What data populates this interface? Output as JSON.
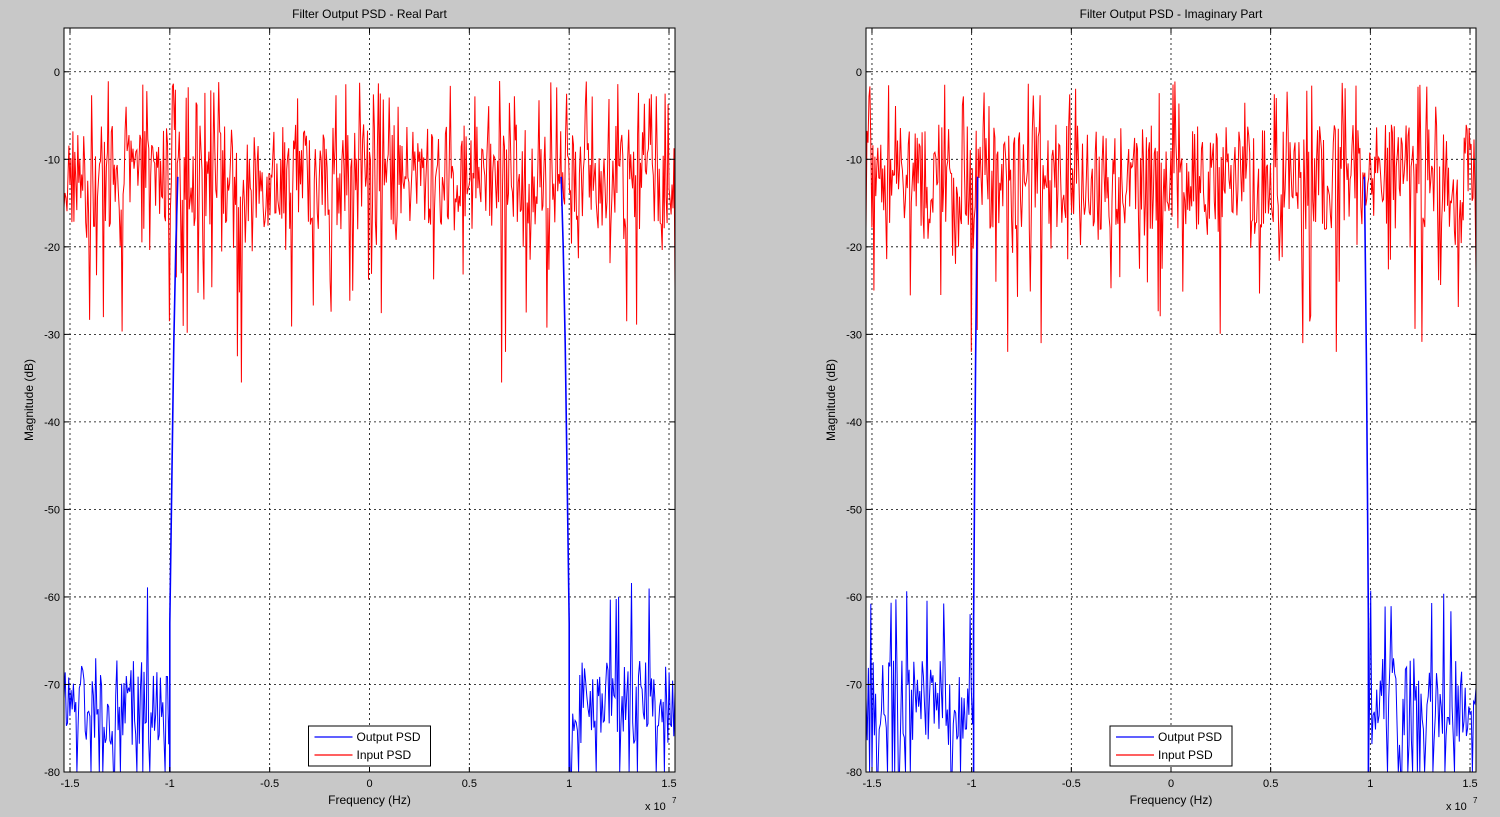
{
  "figure": {
    "background": "#c8c8c8"
  },
  "chart_data": [
    {
      "type": "line",
      "title": "Filter Output PSD - Real Part",
      "xlabel": "Frequency (Hz)",
      "ylabel": "Magnitude (dB)",
      "x_multiplier_label": "x 10",
      "x_multiplier_exponent": "7",
      "xlim": [
        -1.53,
        1.53
      ],
      "ylim": [
        -80,
        5
      ],
      "xticks": [
        -1.5,
        -1,
        -0.5,
        0,
        0.5,
        1,
        1.5
      ],
      "xtick_labels": [
        "-1.5",
        "-1",
        "-0.5",
        "0",
        "0.5",
        "1",
        "1.5"
      ],
      "yticks": [
        0,
        -10,
        -20,
        -30,
        -40,
        -50,
        -60,
        -70,
        -80
      ],
      "ytick_labels": [
        "0",
        "-10",
        "-20",
        "-30",
        "-40",
        "-50",
        "-60",
        "-70",
        "-80"
      ],
      "grid": true,
      "legend_position": "bottom-center",
      "series": [
        {
          "name": "Output PSD",
          "color": "#0000ff",
          "passband": [
            -1.0,
            1.0
          ],
          "passband_level_db": 0,
          "stopband_level_db": -72,
          "stopband_noise_range_db": [
            -80,
            -61
          ],
          "transition_points": [
            [
              -1.0,
              -80
            ],
            [
              -1.0,
              -63
            ],
            [
              -0.99,
              -47
            ],
            [
              -0.98,
              -31
            ],
            [
              -0.97,
              -20
            ],
            [
              -0.96,
              -12
            ],
            [
              0.96,
              -12
            ],
            [
              0.97,
              -20
            ],
            [
              0.98,
              -31
            ],
            [
              0.99,
              -47
            ],
            [
              1.0,
              -63
            ],
            [
              1.0,
              -80
            ]
          ]
        },
        {
          "name": "Input PSD",
          "color": "#ff0000",
          "mean_db": -12,
          "range_db": [
            -36,
            0
          ],
          "min_points": [
            [
              -1.0,
              -28.5
            ],
            [
              -0.66,
              -32.5
            ],
            [
              -0.64,
              -35.5
            ],
            [
              0.66,
              -35.5
            ],
            [
              0.68,
              -32
            ]
          ]
        }
      ]
    },
    {
      "type": "line",
      "title": "Filter Output PSD - Imaginary Part",
      "xlabel": "Frequency (Hz)",
      "ylabel": "Magnitude (dB)",
      "x_multiplier_label": "x 10",
      "x_multiplier_exponent": "7",
      "xlim": [
        -1.53,
        1.53
      ],
      "ylim": [
        -80,
        5
      ],
      "xticks": [
        -1.5,
        -1,
        -0.5,
        0,
        0.5,
        1,
        1.5
      ],
      "xtick_labels": [
        "-1.5",
        "-1",
        "-0.5",
        "0",
        "0.5",
        "1",
        "1.5"
      ],
      "yticks": [
        0,
        -10,
        -20,
        -30,
        -40,
        -50,
        -60,
        -70,
        -80
      ],
      "ytick_labels": [
        "0",
        "-10",
        "-20",
        "-30",
        "-40",
        "-50",
        "-60",
        "-70",
        "-80"
      ],
      "grid": true,
      "legend_position": "bottom-center",
      "series": [
        {
          "name": "Output PSD",
          "color": "#0000ff",
          "passband": [
            -0.99,
            0.99
          ],
          "passband_level_db": 0,
          "stopband_level_db": -72,
          "stopband_noise_range_db": [
            -80,
            -62
          ],
          "transition_points": [
            [
              -0.99,
              -80
            ],
            [
              -0.99,
              -63
            ],
            [
              -0.985,
              -47
            ],
            [
              -0.98,
              -33
            ],
            [
              -0.975,
              -22
            ],
            [
              -0.97,
              -12
            ],
            [
              0.97,
              -12
            ],
            [
              0.975,
              -22
            ],
            [
              0.98,
              -33
            ],
            [
              0.985,
              -47
            ],
            [
              0.99,
              -63
            ],
            [
              0.99,
              -80
            ]
          ]
        },
        {
          "name": "Input PSD",
          "color": "#ff0000",
          "mean_db": -12,
          "range_db": [
            -33,
            0
          ],
          "min_points": [
            [
              -1.0,
              -32
            ],
            [
              -0.82,
              -32
            ],
            [
              -0.65,
              -31
            ],
            [
              0.66,
              -31
            ],
            [
              0.83,
              -32
            ]
          ]
        }
      ]
    }
  ]
}
